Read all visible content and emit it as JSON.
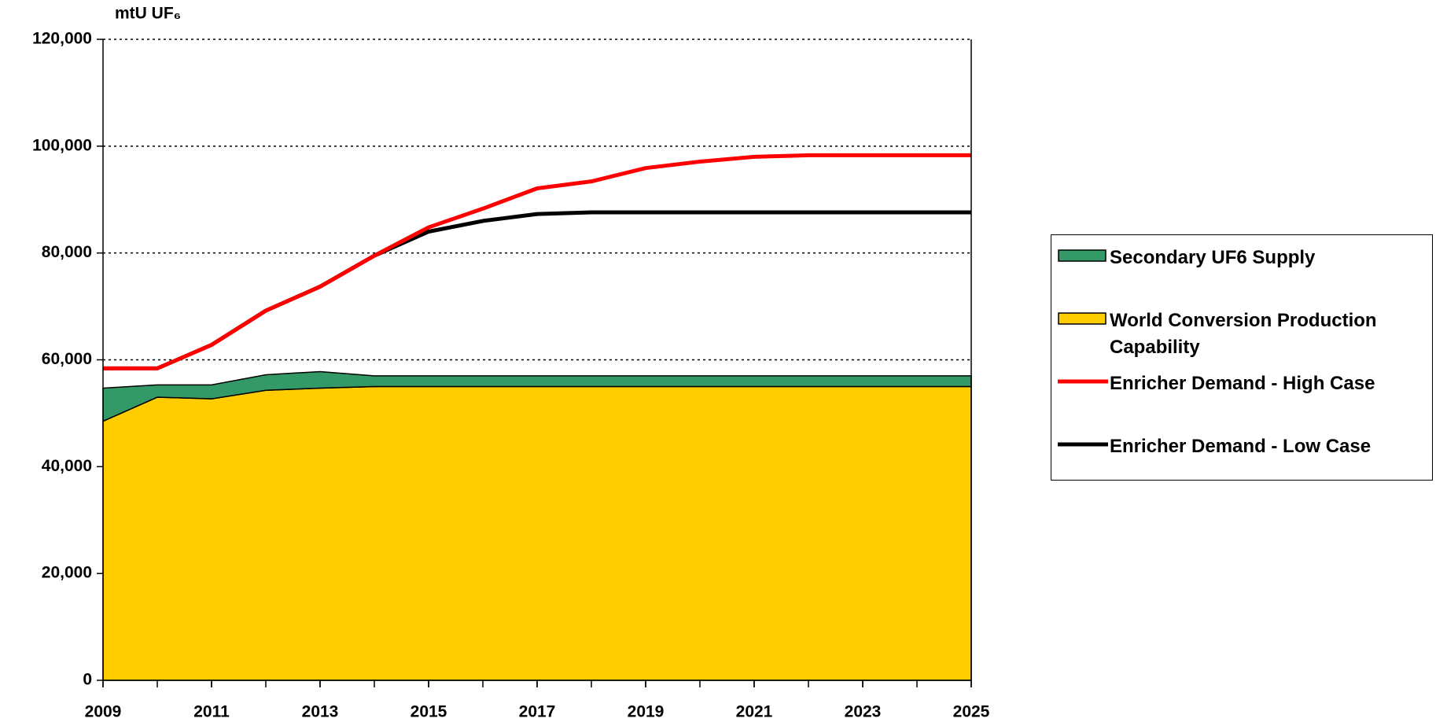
{
  "chart_data": {
    "type": "stacked-area-line",
    "y_label": "mtU UF₆",
    "x": [
      2009,
      2010,
      2011,
      2012,
      2013,
      2014,
      2015,
      2016,
      2017,
      2018,
      2019,
      2020,
      2021,
      2022,
      2023,
      2024,
      2025
    ],
    "xlim": [
      2009,
      2025
    ],
    "xticks": [
      2009,
      2011,
      2013,
      2015,
      2017,
      2019,
      2021,
      2023,
      2025
    ],
    "ylim": [
      0,
      120000
    ],
    "yticks": [
      {
        "value": 0,
        "label": "0"
      },
      {
        "value": 20000,
        "label": "20,000"
      },
      {
        "value": 40000,
        "label": "40,000"
      },
      {
        "value": 60000,
        "label": "60,000"
      },
      {
        "value": 80000,
        "label": "80,000"
      },
      {
        "value": 100000,
        "label": "100,000"
      },
      {
        "value": 120000,
        "label": "120,000"
      }
    ],
    "grid": true,
    "legend": "right",
    "series": [
      {
        "name": "Secondary UF6 Supply",
        "kind": "area",
        "color": "#339966",
        "values": [
          6200,
          2300,
          2600,
          2900,
          3100,
          2000,
          2000,
          2000,
          2000,
          2000,
          2000,
          2000,
          2000,
          2000,
          2000,
          2000,
          2000
        ]
      },
      {
        "name": "World Conversion Production Capability",
        "kind": "area",
        "color": "#ffcc00",
        "values": [
          48500,
          53000,
          52700,
          54300,
          54700,
          55000,
          55000,
          55000,
          55000,
          55000,
          55000,
          55000,
          55000,
          55000,
          55000,
          55000,
          55000
        ]
      },
      {
        "name": "Enricher Demand - High Case",
        "kind": "line",
        "color": "#ff0000",
        "values": [
          58400,
          58400,
          62800,
          69200,
          73700,
          79500,
          84800,
          88300,
          92100,
          93400,
          95900,
          97100,
          98000,
          98300,
          98300,
          98300,
          98300
        ]
      },
      {
        "name": "Enricher Demand - Low Case",
        "kind": "line",
        "color": "#000000",
        "values": [
          58400,
          58400,
          62800,
          69200,
          73700,
          79500,
          84000,
          86000,
          87300,
          87600,
          87600,
          87600,
          87600,
          87600,
          87600,
          87600,
          87600
        ]
      }
    ]
  }
}
